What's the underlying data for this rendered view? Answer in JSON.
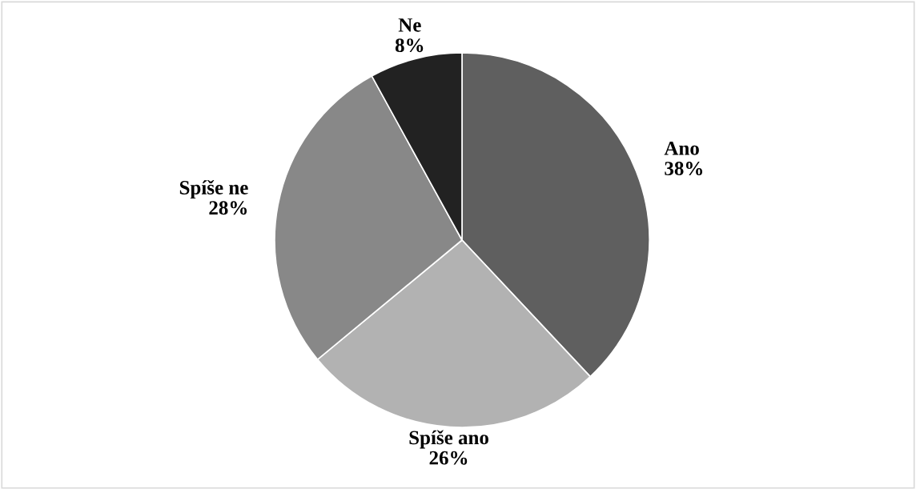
{
  "chart_data": {
    "type": "pie",
    "categories": [
      "Ano",
      "Spíše ano",
      "Spíše ne",
      "Ne"
    ],
    "values": [
      38,
      26,
      28,
      8
    ],
    "value_labels": [
      "38%",
      "26%",
      "28%",
      "8%"
    ],
    "colors": [
      "#5f5f5f",
      "#b2b2b2",
      "#888888",
      "#222222"
    ],
    "legend": false
  }
}
